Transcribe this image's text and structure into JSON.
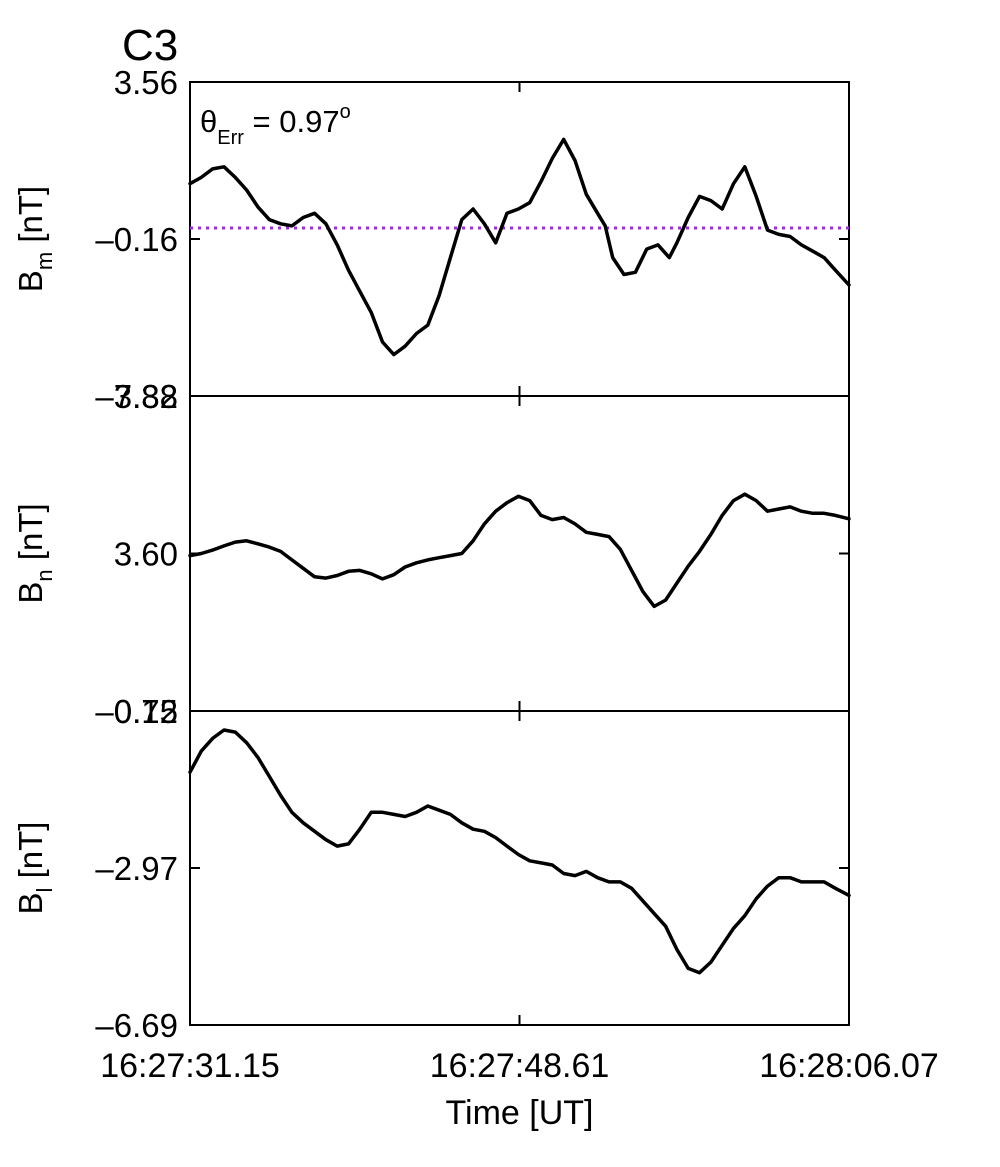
{
  "title": "C3",
  "theta_text": "θ",
  "theta_sub": "Err",
  "theta_value": " =  0.97",
  "theta_sup": "o",
  "colors": {
    "title": "#e8120c",
    "trace": "#000000",
    "ref_line": "#9b30d9",
    "axes": "#000000"
  },
  "x_axis": {
    "label": "Time [UT]",
    "ticks": [
      "16:27:31.15",
      "16:27:48.61",
      "16:28:06.07"
    ]
  },
  "chart_data": [
    {
      "type": "line",
      "panel": "top",
      "ylabel_main": "B",
      "ylabel_sub": "m",
      "ylabel_unit": " [nT]",
      "ylim": [
        -3.88,
        3.56
      ],
      "yticks": [
        "3.56",
        "–0.16",
        "–3.88"
      ],
      "xlim": [
        0,
        34.92
      ],
      "reference_line": {
        "y": 0.1,
        "style": "dotted"
      },
      "x": [
        0,
        0.6,
        1.2,
        1.8,
        2.4,
        3.0,
        3.6,
        4.2,
        4.8,
        5.4,
        6.0,
        6.6,
        7.2,
        7.8,
        8.4,
        9.0,
        9.6,
        10.2,
        10.8,
        11.4,
        12.0,
        12.6,
        13.2,
        13.8,
        14.4,
        15.0,
        15.6,
        16.2,
        16.8,
        17.4,
        18.0,
        18.6,
        19.2,
        19.8,
        20.4,
        21.0,
        21.6,
        22.0,
        22.4,
        23.0,
        23.6,
        24.2,
        24.8,
        25.4,
        25.8,
        26.4,
        27.0,
        27.6,
        28.2,
        28.8,
        29.4,
        30.0,
        30.6,
        31.2,
        31.8,
        32.4,
        33.0,
        33.6,
        34.2,
        34.92
      ],
      "values": [
        1.15,
        1.3,
        1.5,
        1.55,
        1.3,
        1.0,
        0.6,
        0.3,
        0.2,
        0.15,
        0.35,
        0.45,
        0.2,
        -0.3,
        -0.9,
        -1.4,
        -1.9,
        -2.6,
        -2.9,
        -2.7,
        -2.4,
        -2.2,
        -1.5,
        -0.6,
        0.3,
        0.55,
        0.2,
        -0.25,
        0.45,
        0.55,
        0.7,
        1.2,
        1.75,
        2.2,
        1.7,
        0.9,
        0.45,
        0.15,
        -0.6,
        -1.0,
        -0.95,
        -0.4,
        -0.3,
        -0.6,
        -0.25,
        0.35,
        0.85,
        0.75,
        0.55,
        1.15,
        1.55,
        0.85,
        0.05,
        -0.05,
        -0.1,
        -0.3,
        -0.45,
        -0.6,
        -0.9,
        -1.25
      ],
      "grid": false
    },
    {
      "type": "line",
      "panel": "middle",
      "ylabel_main": "B",
      "ylabel_sub": "n",
      "ylabel_unit": " [nT]",
      "ylim": [
        -0.12,
        7.32
      ],
      "yticks": [
        "7.32",
        "3.60",
        "–0.12"
      ],
      "xlim": [
        0,
        34.92
      ],
      "x": [
        0,
        0.6,
        1.2,
        1.8,
        2.4,
        3.0,
        3.6,
        4.2,
        4.8,
        5.4,
        6.0,
        6.6,
        7.2,
        7.8,
        8.4,
        9.0,
        9.6,
        10.2,
        10.8,
        11.4,
        12.0,
        12.6,
        13.2,
        13.8,
        14.4,
        15.0,
        15.6,
        16.2,
        16.8,
        17.4,
        18.0,
        18.6,
        19.2,
        19.8,
        20.4,
        21.0,
        21.6,
        22.2,
        22.8,
        23.4,
        24.0,
        24.6,
        25.2,
        25.8,
        26.4,
        27.0,
        27.6,
        28.2,
        28.8,
        29.4,
        30.0,
        30.6,
        31.2,
        31.8,
        32.4,
        33.0,
        33.6,
        34.2,
        34.92
      ],
      "values": [
        3.55,
        3.6,
        3.68,
        3.78,
        3.87,
        3.9,
        3.83,
        3.75,
        3.65,
        3.45,
        3.25,
        3.05,
        3.02,
        3.08,
        3.18,
        3.2,
        3.12,
        3.0,
        3.1,
        3.28,
        3.38,
        3.45,
        3.5,
        3.55,
        3.6,
        3.9,
        4.3,
        4.6,
        4.8,
        4.95,
        4.85,
        4.5,
        4.4,
        4.45,
        4.3,
        4.1,
        4.05,
        4.0,
        3.7,
        3.2,
        2.7,
        2.35,
        2.5,
        2.9,
        3.3,
        3.65,
        4.05,
        4.5,
        4.85,
        5.0,
        4.85,
        4.6,
        4.65,
        4.7,
        4.6,
        4.55,
        4.55,
        4.5,
        4.42
      ],
      "grid": false
    },
    {
      "type": "line",
      "panel": "bottom",
      "ylabel_main": "B",
      "ylabel_sub": "l",
      "ylabel_unit": " [nT]",
      "ylim": [
        -6.69,
        0.75
      ],
      "yticks": [
        "0.75",
        "–2.97",
        "–6.69"
      ],
      "xlim": [
        0,
        34.92
      ],
      "x": [
        0,
        0.6,
        1.2,
        1.8,
        2.4,
        3.0,
        3.6,
        4.2,
        4.8,
        5.4,
        6.0,
        6.6,
        7.2,
        7.8,
        8.4,
        9.0,
        9.6,
        10.2,
        10.8,
        11.4,
        12.0,
        12.6,
        13.2,
        13.8,
        14.4,
        15.0,
        15.6,
        16.2,
        16.8,
        17.4,
        18.0,
        18.6,
        19.2,
        19.8,
        20.4,
        21.0,
        21.6,
        22.2,
        22.8,
        23.4,
        24.0,
        24.6,
        25.2,
        25.8,
        26.4,
        27.0,
        27.6,
        28.2,
        28.8,
        29.4,
        30.0,
        30.6,
        31.2,
        31.8,
        32.4,
        33.0,
        33.6,
        34.2,
        34.92
      ],
      "values": [
        -0.7,
        -0.2,
        0.1,
        0.3,
        0.25,
        0.0,
        -0.35,
        -0.8,
        -1.25,
        -1.65,
        -1.9,
        -2.1,
        -2.3,
        -2.45,
        -2.4,
        -2.05,
        -1.65,
        -1.65,
        -1.7,
        -1.75,
        -1.65,
        -1.5,
        -1.6,
        -1.7,
        -1.9,
        -2.05,
        -2.1,
        -2.25,
        -2.45,
        -2.65,
        -2.8,
        -2.85,
        -2.9,
        -3.1,
        -3.15,
        -3.05,
        -3.2,
        -3.3,
        -3.3,
        -3.45,
        -3.75,
        -4.05,
        -4.35,
        -4.9,
        -5.35,
        -5.45,
        -5.2,
        -4.8,
        -4.4,
        -4.1,
        -3.7,
        -3.4,
        -3.2,
        -3.2,
        -3.3,
        -3.3,
        -3.3,
        -3.45,
        -3.62
      ],
      "grid": false
    }
  ]
}
